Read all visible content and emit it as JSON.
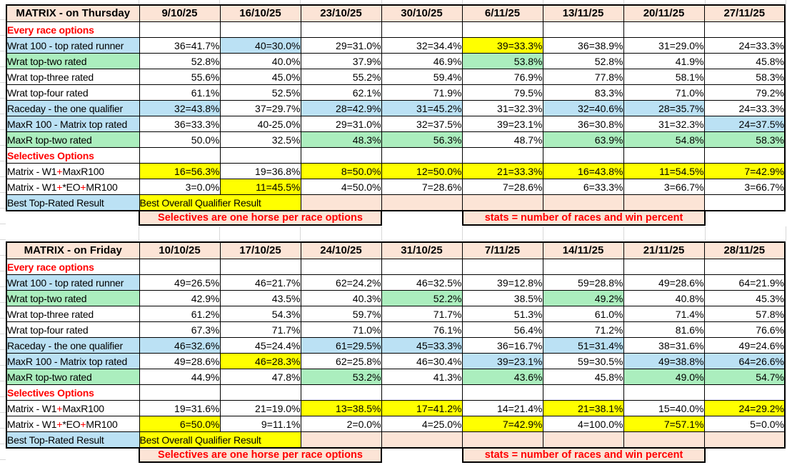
{
  "sheet": {
    "colors": {
      "blue": "#BBE1F4",
      "green": "#ABEEBE",
      "yellow": "#FFFF00",
      "pink": "#FCE4D6",
      "red": "#FF0000",
      "border": "#000000",
      "grid": "#D8D8D8"
    },
    "tables": [
      {
        "title": "MATRIX - on Thursday",
        "dates": [
          "9/10/25",
          "16/10/25",
          "23/10/25",
          "30/10/25",
          "6/11/25",
          "13/11/25",
          "20/11/25",
          "27/11/25"
        ],
        "rows": [
          {
            "label": "Every race options",
            "section": true,
            "labelBg": "w",
            "cells": [
              "",
              "",
              "",
              "",
              "",
              "",
              "",
              ""
            ],
            "bgs": [
              "w",
              "w",
              "w",
              "w",
              "w",
              "w",
              "w",
              "w"
            ]
          },
          {
            "label": "Wrat 100 - top rated runner",
            "labelBg": "b",
            "cells": [
              "36=41.7%",
              "40=30.0%",
              "29=31.0%",
              "32=34.4%",
              "39=33.3%",
              "36=38.9%",
              "31=29.0%",
              "24=33.3%"
            ],
            "bgs": [
              "w",
              "b",
              "w",
              "w",
              "y",
              "w",
              "w",
              "w"
            ]
          },
          {
            "label": "Wrat top-two rated",
            "labelBg": "g",
            "cells": [
              "52.8%",
              "40.0%",
              "37.9%",
              "46.9%",
              "53.8%",
              "52.8%",
              "41.9%",
              "45.8%"
            ],
            "bgs": [
              "w",
              "w",
              "w",
              "w",
              "g",
              "w",
              "w",
              "w"
            ]
          },
          {
            "label": "Wrat top-three rated",
            "labelBg": "w",
            "cells": [
              "55.6%",
              "45.0%",
              "55.2%",
              "59.4%",
              "76.9%",
              "77.8%",
              "58.1%",
              "58.3%"
            ],
            "bgs": [
              "w",
              "w",
              "w",
              "w",
              "w",
              "w",
              "w",
              "w"
            ]
          },
          {
            "label": "Wrat top-four rated",
            "labelBg": "w",
            "cells": [
              "61.1%",
              "52.5%",
              "62.1%",
              "71.9%",
              "79.5%",
              "83.3%",
              "71.0%",
              "79.2%"
            ],
            "bgs": [
              "w",
              "w",
              "w",
              "w",
              "w",
              "w",
              "w",
              "w"
            ]
          },
          {
            "label": "Raceday - the one qualifier",
            "labelBg": "b",
            "cells": [
              "32=43.8%",
              "37=29.7%",
              "28=42.9%",
              "31=45.2%",
              "31=32.3%",
              "32=40.6%",
              "28=35.7%",
              "24=33.3%"
            ],
            "bgs": [
              "b",
              "w",
              "b",
              "b",
              "w",
              "b",
              "b",
              "w"
            ]
          },
          {
            "label": "MaxR 100 - Matrix top rated",
            "labelBg": "b",
            "cells": [
              "36=33.3%",
              "40-25.0%",
              "29=31.0%",
              "32=37.5%",
              "39=23.1%",
              "36=30.8%",
              "31=32.3%",
              "24=37.5%"
            ],
            "bgs": [
              "w",
              "w",
              "w",
              "w",
              "w",
              "w",
              "w",
              "b"
            ]
          },
          {
            "label": "MaxR top-two rated",
            "labelBg": "g",
            "cells": [
              "50.0%",
              "32.5%",
              "48.3%",
              "56.3%",
              "48.7%",
              "63.9%",
              "54.8%",
              "58.3%"
            ],
            "bgs": [
              "w",
              "w",
              "g",
              "g",
              "w",
              "g",
              "g",
              "g"
            ]
          },
          {
            "label": "Selectives Options",
            "section": true,
            "labelBg": "w",
            "cells": [
              "",
              "",
              "",
              "",
              "",
              "",
              "",
              ""
            ],
            "bgs": [
              "w",
              "w",
              "w",
              "w",
              "w",
              "w",
              "w",
              "w"
            ]
          },
          {
            "labelParts": [
              {
                "text": "Matrix - W1",
                "red": false
              },
              {
                "text": "+",
                "red": true
              },
              {
                "text": "MaxR100",
                "red": false
              }
            ],
            "labelBg": "w",
            "cells": [
              "16=56.3%",
              "19=36.8%",
              "8=50.0%",
              "12=50.0%",
              "21=33.3%",
              "16=43.8%",
              "11=54.5%",
              "7=42.9%"
            ],
            "bgs": [
              "y",
              "w",
              "y",
              "y",
              "y",
              "y",
              "y",
              "y"
            ]
          },
          {
            "labelParts": [
              {
                "text": "Matrix - W1",
                "red": false
              },
              {
                "text": "+",
                "red": true
              },
              {
                "text": "*EO",
                "red": false
              },
              {
                "text": "+",
                "red": true
              },
              {
                "text": "MR100",
                "red": false
              }
            ],
            "labelBg": "w",
            "cells": [
              "3=0.0%",
              "11=45.5%",
              "4=50.0%",
              "7=28.6%",
              "7=28.6%",
              "6=33.3%",
              "3=66.7%",
              "3=66.7%"
            ],
            "bgs": [
              "w",
              "y",
              "w",
              "w",
              "w",
              "w",
              "w",
              "w"
            ]
          }
        ],
        "best_row": {
          "label": "Best Top-Rated Result",
          "merged": "Best Overall Qualifier Result",
          "tail": [
            "p",
            "p",
            "p",
            "p",
            "p",
            "w"
          ]
        },
        "notes": {
          "left": "Selectives are one horse per race options",
          "right": "stats = number of races and win percent"
        }
      },
      {
        "title": "MATRIX - on Friday",
        "dates": [
          "10/10/25",
          "17/10/25",
          "24/10/25",
          "31/10/25",
          "7/11/25",
          "14/11/25",
          "21/11/25",
          "28/11/25"
        ],
        "rows": [
          {
            "label": "Every race options",
            "section": true,
            "labelBg": "w",
            "cells": [
              "",
              "",
              "",
              "",
              "",
              "",
              "",
              ""
            ],
            "bgs": [
              "w",
              "w",
              "w",
              "w",
              "w",
              "w",
              "w",
              "w"
            ]
          },
          {
            "label": "Wrat 100 - top rated runner",
            "labelBg": "b",
            "cells": [
              "49=26.5%",
              "46=21.7%",
              "62=24.2%",
              "46=32.5%",
              "39=12.8%",
              "59=28.8%",
              "49=28.6%",
              "64=21.9%"
            ],
            "bgs": [
              "w",
              "w",
              "w",
              "w",
              "w",
              "w",
              "w",
              "w"
            ]
          },
          {
            "label": "Wrat top-two rated",
            "labelBg": "g",
            "cells": [
              "42.9%",
              "43.5%",
              "40.3%",
              "52.2%",
              "38.5%",
              "49.2%",
              "40.8%",
              "45.3%"
            ],
            "bgs": [
              "w",
              "w",
              "w",
              "g",
              "w",
              "g",
              "w",
              "w"
            ]
          },
          {
            "label": "Wrat top-three rated",
            "labelBg": "w",
            "cells": [
              "61.2%",
              "54.3%",
              "59.7%",
              "71.7%",
              "51.3%",
              "61.0%",
              "71.4%",
              "57.8%"
            ],
            "bgs": [
              "w",
              "w",
              "w",
              "w",
              "w",
              "w",
              "w",
              "w"
            ]
          },
          {
            "label": "Wrat top-four rated",
            "labelBg": "w",
            "cells": [
              "67.3%",
              "71.7%",
              "71.0%",
              "76.1%",
              "56.4%",
              "71.2%",
              "81.6%",
              "76.6%"
            ],
            "bgs": [
              "w",
              "w",
              "w",
              "w",
              "w",
              "w",
              "w",
              "w"
            ]
          },
          {
            "label": "Raceday - the one qualifier",
            "labelBg": "b",
            "cells": [
              "46=32.6%",
              "45=24.4%",
              "61=29.5%",
              "45=33.3%",
              "36=16.7%",
              "51=31.4%",
              "38=31.6%",
              "49=24.6%"
            ],
            "bgs": [
              "b",
              "w",
              "b",
              "b",
              "w",
              "b",
              "w",
              "w"
            ]
          },
          {
            "label": "MaxR 100 - Matrix top rated",
            "labelBg": "b",
            "cells": [
              "49=28.6%",
              "46=28.3%",
              "62=25.8%",
              "46=30.4%",
              "39=23.1%",
              "59=30.5%",
              "49=38.8%",
              "64=26.6%"
            ],
            "bgs": [
              "w",
              "y",
              "w",
              "w",
              "b",
              "w",
              "b",
              "b"
            ]
          },
          {
            "label": "MaxR top-two rated",
            "labelBg": "g",
            "cells": [
              "44.9%",
              "47.8%",
              "53.2%",
              "41.3%",
              "43.6%",
              "45.8%",
              "49.0%",
              "54.7%"
            ],
            "bgs": [
              "w",
              "w",
              "g",
              "w",
              "g",
              "w",
              "g",
              "g"
            ]
          },
          {
            "label": "Selectives Options",
            "section": true,
            "labelBg": "w",
            "cells": [
              "",
              "",
              "",
              "",
              "",
              "",
              "",
              ""
            ],
            "bgs": [
              "w",
              "w",
              "w",
              "w",
              "w",
              "w",
              "w",
              "w"
            ]
          },
          {
            "labelParts": [
              {
                "text": "Matrix - W1",
                "red": false
              },
              {
                "text": "+",
                "red": true
              },
              {
                "text": "MaxR100",
                "red": false
              }
            ],
            "labelBg": "w",
            "cells": [
              "19=31.6%",
              "21=19.0%",
              "13=38.5%",
              "17=41.2%",
              "14=21.4%",
              "21=38.1%",
              "15=40.0%",
              "24=29.2%"
            ],
            "bgs": [
              "w",
              "w",
              "y",
              "y",
              "w",
              "y",
              "w",
              "y"
            ]
          },
          {
            "labelParts": [
              {
                "text": "Matrix - W1",
                "red": false
              },
              {
                "text": "+",
                "red": true
              },
              {
                "text": "*EO",
                "red": false
              },
              {
                "text": "+",
                "red": true
              },
              {
                "text": "MR100",
                "red": false
              }
            ],
            "labelBg": "w",
            "cells": [
              "6=50.0%",
              "9=11.1%",
              "2=0.0%",
              "4=25.0%",
              "7=42.9%",
              "4=100.0%",
              "7=57.1%",
              "5=0.0%"
            ],
            "bgs": [
              "y",
              "w",
              "w",
              "w",
              "y",
              "w",
              "y",
              "w"
            ]
          }
        ],
        "best_row": {
          "label": "Best Top-Rated Result",
          "merged": "Best Overall Qualifier Result",
          "tail": [
            "p",
            "p",
            "p",
            "p",
            "p",
            "p"
          ]
        },
        "notes": {
          "left": "Selectives are one horse per race options",
          "right": "stats = number of races and win percent"
        }
      }
    ]
  }
}
